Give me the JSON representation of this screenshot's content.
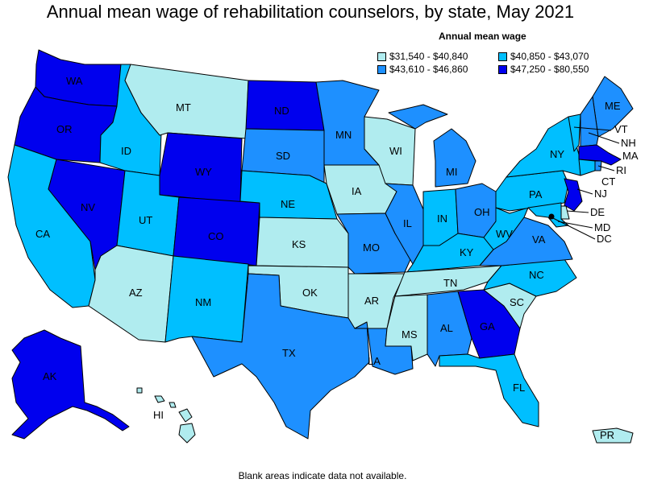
{
  "title": "Annual mean wage of rehabilitation counselors, by state, May 2021",
  "legend": {
    "title": "Annual mean wage",
    "classes": [
      {
        "label": "$31,540 - $40,840",
        "color": "#b0ecef"
      },
      {
        "label": "$40,850 - $43,070",
        "color": "#00bfff"
      },
      {
        "label": "$43,610 - $46,860",
        "color": "#1e90ff"
      },
      {
        "label": "$47,250 - $80,550",
        "color": "#0000ee"
      }
    ]
  },
  "states": {
    "WA": 3,
    "OR": 3,
    "CA": 1,
    "NV": 3,
    "ID": 1,
    "MT": 0,
    "WY": 3,
    "UT": 1,
    "AZ": 0,
    "CO": 3,
    "NM": 1,
    "ND": 3,
    "SD": 2,
    "NE": 1,
    "KS": 0,
    "OK": 0,
    "TX": 2,
    "MN": 2,
    "IA": 0,
    "MO": 2,
    "AR": 0,
    "LA": 2,
    "WI": 0,
    "IL": 2,
    "MI": 2,
    "IN": 1,
    "OH": 2,
    "KY": 1,
    "TN": 0,
    "MS": 0,
    "AL": 2,
    "GA": 3,
    "FL": 1,
    "SC": 0,
    "NC": 1,
    "VA": 2,
    "WV": 1,
    "PA": 1,
    "NY": 1,
    "ME": 2,
    "VT": 1,
    "NH": 2,
    "MA": 3,
    "RI": 2,
    "CT": 1,
    "NJ": 3,
    "DE": 0,
    "MD": 1,
    "DC": 1,
    "AK": 3,
    "HI": 0,
    "PR": 0
  },
  "footnote": "Blank areas indicate data not available."
}
